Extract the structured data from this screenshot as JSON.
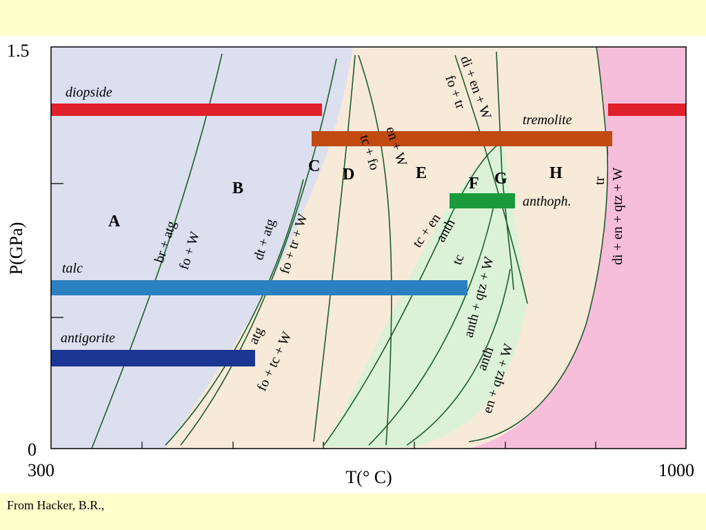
{
  "axes": {
    "y_label": "P(GPa)",
    "x_label": "T(° C)",
    "y_ticks": [
      "1.5",
      "0"
    ],
    "x_ticks": [
      "300",
      "1000"
    ]
  },
  "bars": [
    "diopside",
    "tremolite",
    "anthoph.",
    "talc",
    "antigorite"
  ],
  "fields": [
    "A",
    "B",
    "C",
    "D",
    "E",
    "F",
    "G",
    "H"
  ],
  "curve_labels": [
    "br + atg",
    "fo + W",
    "dt + atg",
    "fo + tr + W",
    "atg",
    "fo + tc + W",
    "tc + fo",
    "en + W",
    "tc + en",
    "anth",
    "tc",
    "anth + qtz + W",
    "anth",
    "en + qtz + W",
    "di + en + W",
    "fo + tr",
    "tr",
    "di + en + qtz + W"
  ],
  "footer": "From Hacker, B.R.,"
}
